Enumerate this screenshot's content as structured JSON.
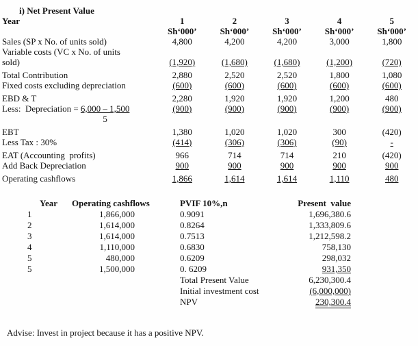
{
  "colors": {
    "background": "#fefefe",
    "text": "#141414"
  },
  "title": "i) Net Present Value",
  "table1": {
    "year_label": "Year",
    "col_headers": [
      "1",
      "2",
      "3",
      "4",
      "5"
    ],
    "unit": "Sh‘000’",
    "rows": [
      {
        "label": "Sales (SP x No. of units sold)",
        "values": [
          "4,800",
          "4,200",
          "4,200",
          "3,000",
          "1,800"
        ],
        "underline": false
      },
      {
        "label": "Variable costs (VC x No. of units",
        "values": [],
        "underline": false
      },
      {
        "label": "sold)",
        "values": [
          "(1,920)",
          "(1,680)",
          "(1,680)",
          "(1,200)",
          "(720)"
        ],
        "underline": true
      },
      {
        "label": "Total Contribution",
        "values": [
          "2,880",
          "2,520",
          "2,520",
          "1,800",
          "1,080"
        ],
        "underline": false
      },
      {
        "label": "Fixed costs excluding depreciation",
        "values": [
          "(600)",
          "(600)",
          "(600)",
          "(600)",
          "(600)"
        ],
        "underline": true
      },
      {
        "label": "EBD & T",
        "values": [
          "2,280",
          "1,920",
          "1,920",
          "1,200",
          "480"
        ],
        "underline": false
      },
      {
        "label": "Less:  Depreciation = ",
        "fraction": {
          "numerator": "6,000 – 1,500",
          "denominator": "5"
        },
        "values": [
          "(900)",
          "(900)",
          "(900)",
          "(900)",
          "(900)"
        ],
        "underline": true
      },
      {
        "label": "EBT",
        "values": [
          "1,380",
          "1,020",
          "1,020",
          "300",
          "(420)"
        ],
        "underline": false
      },
      {
        "label": "Less Tax : 30%",
        "values": [
          "(414)",
          "(306)",
          "(306)",
          "(90)",
          "-"
        ],
        "underline": true
      },
      {
        "label": "EAT (Accounting  profits)",
        "values": [
          "966",
          "714",
          "714",
          "210",
          "(420)"
        ],
        "underline": false
      },
      {
        "label": "Add Back Depreciation",
        "values": [
          "900",
          "900",
          "900",
          "900",
          "900"
        ],
        "underline": true
      },
      {
        "label": "Operating cashflows",
        "values": [
          "1,866",
          "1,614",
          "1,614",
          "1,110",
          "480"
        ],
        "underline": true
      }
    ]
  },
  "table2": {
    "headers": [
      "Year",
      "Operating cashflows",
      "PVIF 10%,n",
      "Present  value"
    ],
    "rows": [
      {
        "year": "1",
        "cashflow": "1,866,000",
        "pvif": "0.9091",
        "pv": "1,696,380.6",
        "pv_underline": false
      },
      {
        "year": "2",
        "cashflow": "1,614,000",
        "pvif": "0.8264",
        "pv": "1,333,809.6",
        "pv_underline": false
      },
      {
        "year": "3",
        "cashflow": "1,614,000",
        "pvif": "0.7513",
        "pv": "1,212,598.2",
        "pv_underline": false
      },
      {
        "year": "4",
        "cashflow": "1,110,000",
        "pvif": "0.6830",
        "pv": "758,130",
        "pv_underline": false
      },
      {
        "year": "5",
        "cashflow": "480,000",
        "pvif": "0.6209",
        "pv": "298,032",
        "pv_underline": false
      },
      {
        "year": "5",
        "cashflow": "1,500,000",
        "pvif": "0. 6209",
        "pv": "931,350",
        "pv_underline": true
      }
    ],
    "summary": [
      {
        "label": "Total Present Value",
        "value": "6,230,300.4",
        "style": "plain"
      },
      {
        "label": "Initial investment cost",
        "value": "(6,000,000)",
        "style": "underline"
      },
      {
        "label": "NPV",
        "value": "230,300.4",
        "style": "double-underline"
      }
    ]
  },
  "advice": "Advise: Invest in project because it has a positive NPV."
}
